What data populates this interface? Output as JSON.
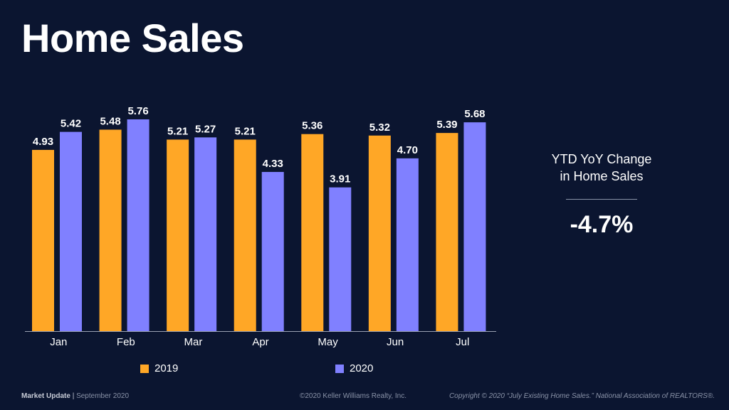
{
  "title": "Home Sales",
  "chart_data": {
    "type": "bar",
    "categories": [
      "Jan",
      "Feb",
      "Mar",
      "Apr",
      "May",
      "Jun",
      "Jul"
    ],
    "series": [
      {
        "name": "2019",
        "color": "#ffa726",
        "values": [
          4.93,
          5.48,
          5.21,
          5.21,
          5.36,
          5.32,
          5.39
        ],
        "labels": [
          "4.93",
          "5.48",
          "5.21",
          "5.21",
          "5.36",
          "5.32",
          "5.39"
        ]
      },
      {
        "name": "2020",
        "color": "#8080ff",
        "values": [
          5.42,
          5.76,
          5.27,
          4.33,
          3.91,
          4.7,
          5.68
        ],
        "labels": [
          "5.42",
          "5.76",
          "5.27",
          "4.33",
          "3.91",
          "4.70",
          "5.68"
        ]
      }
    ],
    "ylim": [
      0,
      5.76
    ],
    "grid": false,
    "legend": "bottom"
  },
  "kpi": {
    "label_line1": "YTD YoY Change",
    "label_line2": "in Home Sales",
    "value": "-4.7%"
  },
  "footer": {
    "left_bold": "Market Update",
    "left_sep": "|",
    "left_date": "September 2020",
    "center": "©2020 Keller Williams Realty, Inc.",
    "right": "Copyright © 2020 “July Existing Home Sales.” National Association of REALTORS®."
  }
}
